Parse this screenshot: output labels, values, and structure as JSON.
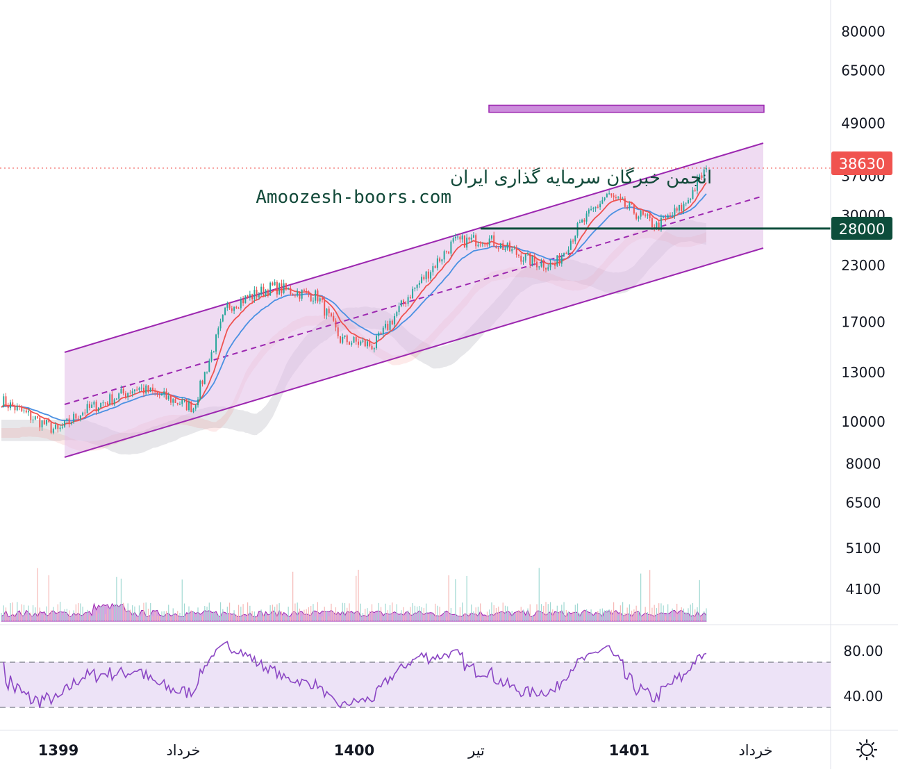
{
  "watermark": {
    "line1": "انجمن خبرگان سرمایه گذاری ایران",
    "line2": "Amoozesh-boors.com"
  },
  "price_axis": {
    "ticks": [
      "80000",
      "65000",
      "49000",
      "37000",
      "30000",
      "23000",
      "17000",
      "13000",
      "10000",
      "8000",
      "6500",
      "5100",
      "4100"
    ],
    "current_price_badge": "38630",
    "level_badge": "28000"
  },
  "rsi_axis": {
    "ticks": [
      "80.00",
      "40.00"
    ],
    "band": [
      30,
      70
    ]
  },
  "time_axis": {
    "labels": [
      {
        "text": "1399",
        "bold": true
      },
      {
        "text": "خرداد",
        "bold": false
      },
      {
        "text": "1400",
        "bold": true
      },
      {
        "text": "تیر",
        "bold": false
      },
      {
        "text": "1401",
        "bold": true
      },
      {
        "text": "خرداد",
        "bold": false
      }
    ]
  },
  "colors": {
    "up": "#26a69a",
    "down": "#ef5350",
    "channel": "#9c27b0",
    "channel_fill": "#e1bee7",
    "ema_fast": "#ef5350",
    "ema_slow": "#4a90e2",
    "level_line": "#0d4d3b",
    "badge_price": "#f0534f",
    "rsi": "#8b46c4",
    "volume": "#c983d6"
  },
  "chart_data": {
    "type": "candlestick",
    "scale": "log",
    "current_price": 38630,
    "horizontal_level": 28000,
    "resistance_zone": [
      52000,
      54000
    ],
    "close_path": [
      {
        "t": "start",
        "close": 11200
      },
      {
        "t": "1399",
        "close": 10000
      },
      {
        "t": "خرداد",
        "close": 11500
      },
      {
        "t": "mid-1399",
        "close": 21000
      },
      {
        "t": "late-1399",
        "close": 20500
      },
      {
        "t": "1400",
        "close": 15500
      },
      {
        "t": "mid-1400",
        "close": 25500
      },
      {
        "t": "تیر",
        "close": 27500
      },
      {
        "t": "late-1400",
        "close": 23500
      },
      {
        "t": "1401",
        "close": 28000
      },
      {
        "t": "peak-1401",
        "close": 34000
      },
      {
        "t": "pullback",
        "close": 28200
      },
      {
        "t": "last",
        "close": 38630
      }
    ],
    "indicators": [
      "EMA fast",
      "EMA slow",
      "Ichimoku cloud",
      "Volume",
      "RSI"
    ]
  }
}
